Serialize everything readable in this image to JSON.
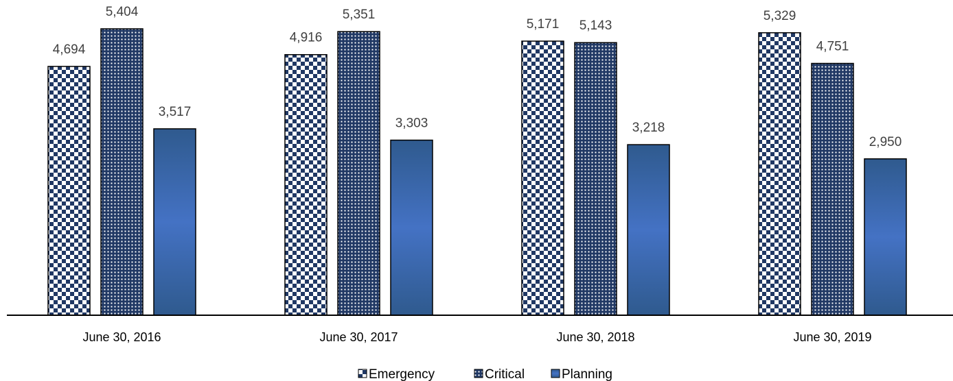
{
  "chart_data": {
    "type": "bar",
    "title": "",
    "xlabel": "",
    "ylabel": "",
    "ylim": [
      0,
      6000
    ],
    "grid": false,
    "legend_placement": "bottom-center",
    "categories": [
      "June 30, 2016",
      "June 30, 2017",
      "June 30, 2018",
      "June 30, 2019"
    ],
    "series": [
      {
        "name": "Emergency",
        "values": [
          4694,
          4916,
          5171,
          5329
        ],
        "value_labels": [
          "4,694",
          "4,916",
          "5,171",
          "5,329"
        ],
        "pattern": "checkerboard",
        "color": "#203864"
      },
      {
        "name": "Critical",
        "values": [
          5404,
          5351,
          5143,
          4751
        ],
        "value_labels": [
          "5,404",
          "5,351",
          "5,143",
          "4,751"
        ],
        "pattern": "dotted-grid",
        "color": "#203864"
      },
      {
        "name": "Planning",
        "values": [
          3517,
          3303,
          3218,
          2950
        ],
        "value_labels": [
          "3,517",
          "3,303",
          "3,218",
          "2,950"
        ],
        "pattern": "gradient",
        "color": "#3f6fac"
      }
    ]
  }
}
